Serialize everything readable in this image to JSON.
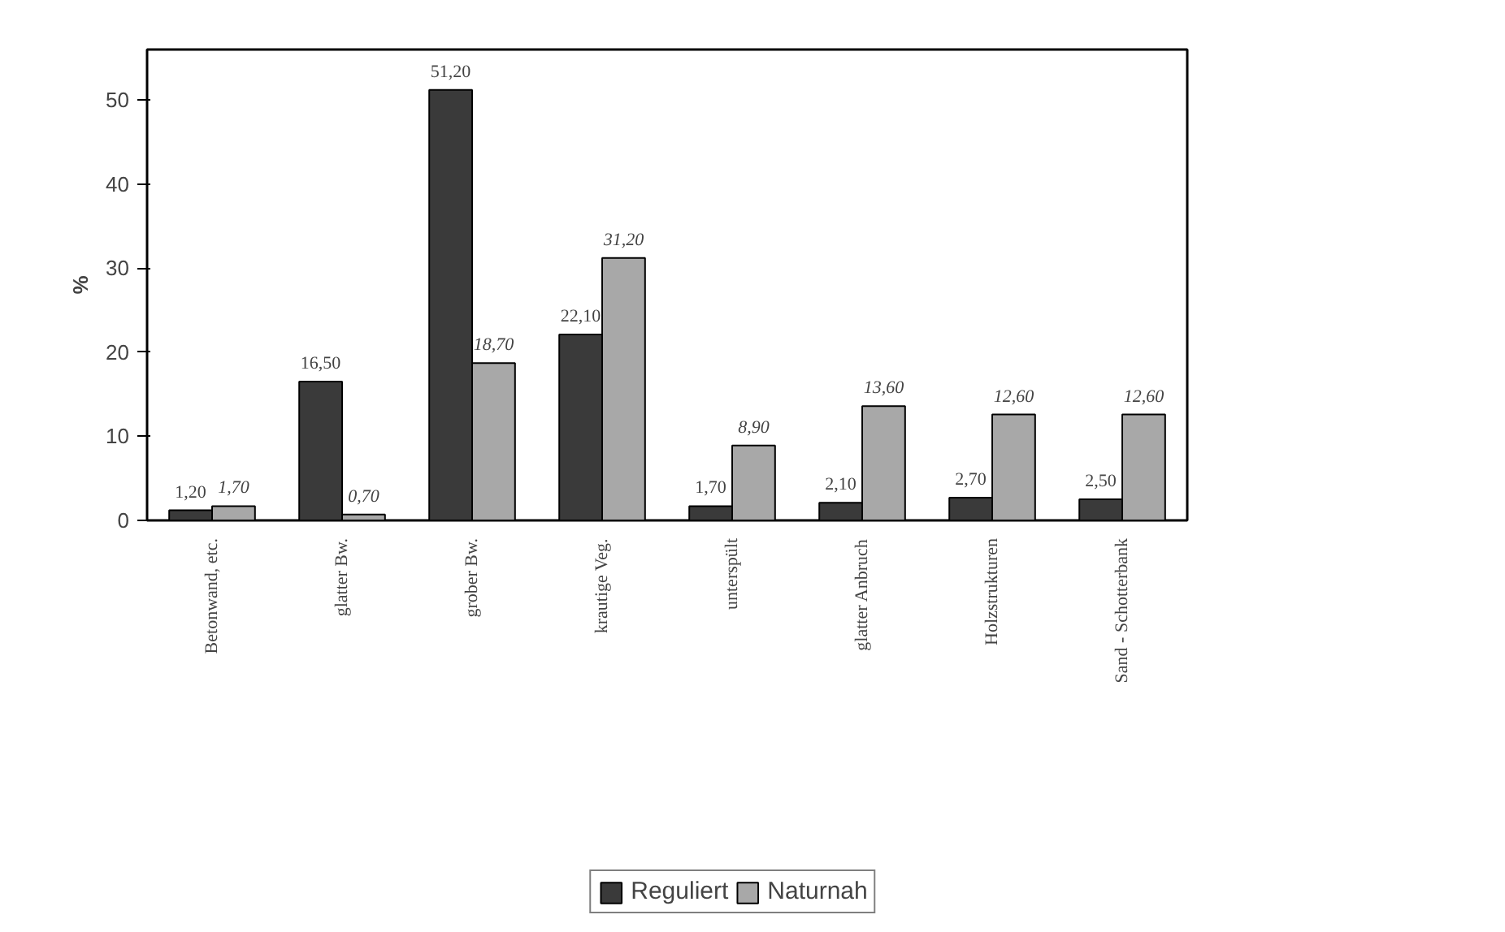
{
  "chart_data": {
    "type": "bar",
    "ylabel": "%",
    "categories": [
      "Betonwand, etc.",
      "glatter Bw.",
      "grober Bw.",
      "krautige Veg.",
      "unterspült",
      "glatter Anbruch",
      "Holzstrukturen",
      "Sand - Schotterbank"
    ],
    "series": [
      {
        "name": "Reguliert",
        "color": "#3a3a3a",
        "values": [
          1.2,
          16.5,
          51.2,
          22.1,
          1.7,
          2.1,
          2.7,
          2.5
        ],
        "value_labels": [
          "1,20",
          "16,50",
          "51,20",
          "22,10",
          "1,70",
          "2,10",
          "2,70",
          "2,50"
        ]
      },
      {
        "name": "Naturnah",
        "color": "#a8a8a8",
        "values": [
          1.7,
          0.7,
          18.7,
          31.2,
          8.9,
          13.6,
          12.6,
          12.6
        ],
        "value_labels": [
          "1,70",
          "0,70",
          "18,70",
          "31,20",
          "8,90",
          "13,60",
          "12,60",
          "12,60"
        ]
      }
    ],
    "ylim": [
      0,
      56
    ],
    "yticks": [
      0,
      10,
      20,
      30,
      40,
      50
    ],
    "grid": false,
    "legend": "bottom"
  }
}
